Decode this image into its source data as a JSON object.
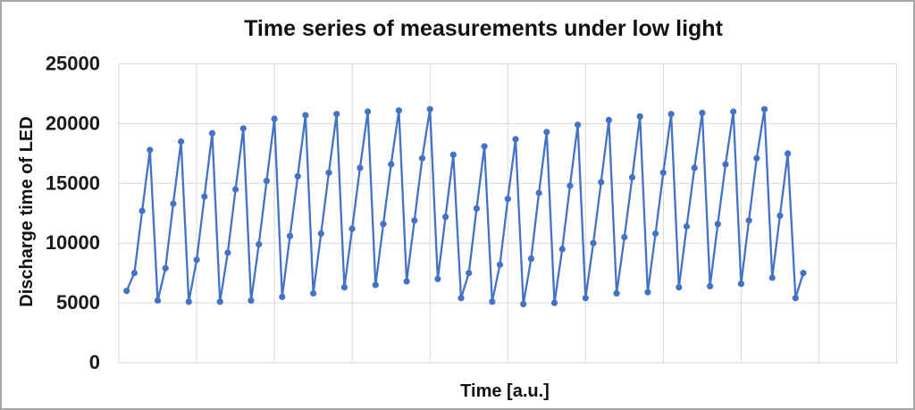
{
  "figure": {
    "background_color": "#FFFFFF",
    "border_color": "#A6A6A6"
  },
  "chart_data": {
    "type": "line",
    "title": "Time series of measurements under low light",
    "xlabel": "Time [a.u.]",
    "ylabel": "Discharge time of LED",
    "ylim": [
      0,
      25000
    ],
    "xlim": [
      0,
      100
    ],
    "yticks": [
      0,
      5000,
      10000,
      15000,
      20000,
      25000
    ],
    "ytick_labels": [
      "0",
      "5000",
      "10000",
      "15000",
      "20000",
      "25000"
    ],
    "x_tick_labels_visible": false,
    "vertical_gridline_divisions": 10,
    "grid": true,
    "legend_position": "none",
    "line_color": "#4472C4",
    "marker": "circle",
    "series": [
      {
        "name": "Discharge time of LED",
        "x_start": 1,
        "x_step": 1,
        "values": [
          6000,
          7500,
          12700,
          17800,
          5200,
          7900,
          13300,
          18500,
          5100,
          8600,
          13900,
          19200,
          5100,
          9200,
          14500,
          19600,
          5200,
          9900,
          15200,
          20400,
          5500,
          10600,
          15600,
          20700,
          5800,
          10800,
          15900,
          20800,
          6300,
          11200,
          16300,
          21000,
          6500,
          11600,
          16600,
          21100,
          6800,
          11900,
          17100,
          21200,
          7000,
          12200,
          17400,
          5400,
          7500,
          12900,
          18100,
          5100,
          8200,
          13700,
          18700,
          4900,
          8700,
          14200,
          19300,
          5000,
          9500,
          14800,
          19900,
          5400,
          10000,
          15100,
          20300,
          5800,
          10500,
          15500,
          20600,
          5900,
          10800,
          15900,
          20800,
          6300,
          11400,
          16300,
          20900,
          6400,
          11600,
          16600,
          21000,
          6600,
          11900,
          17100,
          21200,
          7100,
          12300,
          17500,
          5400,
          7500
        ]
      }
    ]
  }
}
